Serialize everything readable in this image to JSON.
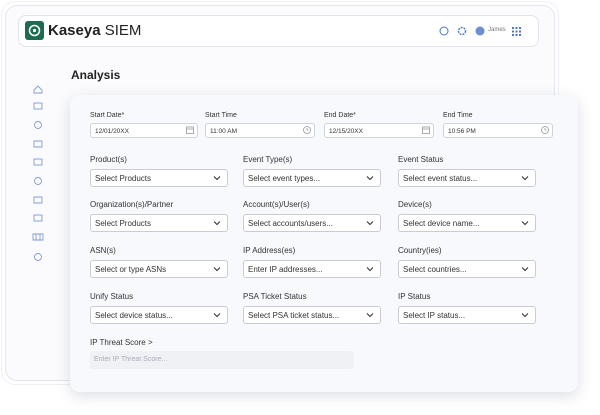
{
  "header": {
    "brand": "Kaseya",
    "product": "SIEM",
    "user": "James"
  },
  "page_title": "Analysis",
  "date_fields": [
    {
      "label": "Start Date*",
      "value": "12/01/20XX"
    },
    {
      "label": "Start Time",
      "value": "11:00 AM"
    },
    {
      "label": "End Date*",
      "value": "12/15/20XX"
    },
    {
      "label": "End Time",
      "value": "10:56 PM"
    }
  ],
  "filters": [
    {
      "label": "Product(s)",
      "placeholder": "Select Products"
    },
    {
      "label": "Event Type(s)",
      "placeholder": "Select event types..."
    },
    {
      "label": "Event Status",
      "placeholder": "Select event status..."
    },
    {
      "label": "Organization(s)/Partner",
      "placeholder": "Select Products"
    },
    {
      "label": "Account(s)/User(s)",
      "placeholder": "Select accounts/users..."
    },
    {
      "label": "Device(s)",
      "placeholder": "Select device name..."
    },
    {
      "label": "ASN(s)",
      "placeholder": "Select or type ASNs"
    },
    {
      "label": "IP Address(es)",
      "placeholder": "Enter IP addresses..."
    },
    {
      "label": "Country(ies)",
      "placeholder": "Select countries..."
    },
    {
      "label": "Unify Status",
      "placeholder": "Select device status..."
    },
    {
      "label": "PSA Ticket Status",
      "placeholder": "Select PSA ticket status..."
    },
    {
      "label": "IP Status",
      "placeholder": "Select IP status..."
    }
  ],
  "threat_score": {
    "label": "IP Threat Score >",
    "placeholder": "Enter IP Threat Score..."
  }
}
